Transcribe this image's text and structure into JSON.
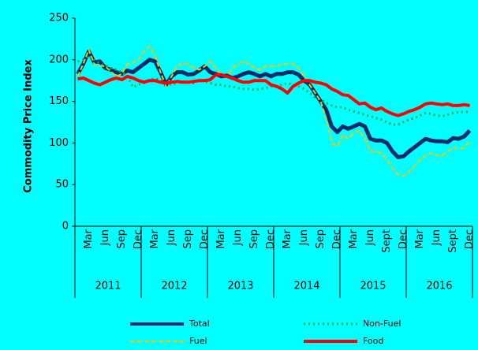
{
  "chart_data": {
    "type": "line",
    "y_label": "Commodity Price Index",
    "categories": [
      null,
      null,
      "Mar",
      null,
      null,
      "Jun",
      null,
      null,
      "Sep",
      null,
      null,
      "Dec",
      null,
      null,
      "Mar",
      null,
      null,
      "Jun",
      null,
      null,
      "Sep",
      null,
      null,
      "Dec",
      null,
      null,
      "Mar",
      null,
      null,
      "Jun",
      null,
      null,
      "Sep",
      null,
      null,
      "Dec",
      null,
      null,
      "Mar",
      null,
      null,
      "Jun",
      null,
      null,
      "Sep",
      null,
      null,
      "Dec",
      null,
      null,
      "Mar",
      null,
      null,
      "Jun",
      null,
      null,
      "Sept",
      null,
      null,
      "Dec",
      null,
      null,
      "Mar",
      null,
      null,
      "Jun",
      null,
      null,
      "Sept",
      null,
      null,
      "Dec"
    ],
    "groups": [
      "2011",
      "2012",
      "2013",
      "2014",
      "2015",
      "2016"
    ],
    "ylim": [
      0,
      250
    ],
    "yticks": [
      0,
      50,
      100,
      150,
      200,
      250
    ],
    "series": [
      {
        "name": "Total",
        "color": "#002b6b",
        "dash": "solid",
        "values": [
          183,
          195,
          210,
          197,
          198,
          190,
          188,
          185,
          183,
          187,
          185,
          190,
          195,
          200,
          198,
          185,
          170,
          180,
          185,
          185,
          182,
          183,
          187,
          192,
          185,
          183,
          180,
          181,
          178,
          180,
          183,
          185,
          183,
          180,
          183,
          180,
          183,
          183,
          185,
          185,
          182,
          175,
          170,
          160,
          150,
          140,
          120,
          113,
          120,
          117,
          120,
          123,
          120,
          105,
          103,
          103,
          100,
          90,
          83,
          84,
          90,
          95,
          100,
          105,
          103,
          102,
          102,
          101,
          106,
          105,
          108,
          115
        ]
      },
      {
        "name": "Non-Fuel",
        "color": "#00b050",
        "dash": "dotted",
        "values": [
          198,
          200,
          205,
          200,
          195,
          193,
          190,
          188,
          185,
          180,
          167,
          170,
          172,
          175,
          178,
          175,
          172,
          170,
          172,
          174,
          173,
          172,
          175,
          174,
          172,
          170,
          170,
          168,
          168,
          166,
          165,
          165,
          164,
          165,
          166,
          168,
          168,
          170,
          172,
          170,
          168,
          165,
          160,
          155,
          152,
          148,
          145,
          143,
          143,
          140,
          138,
          136,
          134,
          132,
          130,
          128,
          125,
          122,
          122,
          125,
          128,
          130,
          133,
          136,
          135,
          133,
          132,
          134,
          136,
          137,
          137,
          138
        ]
      },
      {
        "name": "Fuel",
        "color": "#ffc000",
        "dash": "dashed",
        "values": [
          180,
          195,
          212,
          195,
          193,
          192,
          186,
          180,
          183,
          195,
          196,
          200,
          210,
          216,
          205,
          185,
          168,
          180,
          192,
          196,
          195,
          190,
          188,
          192,
          198,
          190,
          182,
          180,
          190,
          195,
          198,
          195,
          190,
          188,
          192,
          193,
          192,
          195,
          195,
          195,
          190,
          180,
          170,
          160,
          150,
          130,
          100,
          96,
          110,
          105,
          112,
          115,
          105,
          90,
          90,
          88,
          80,
          70,
          62,
          60,
          65,
          72,
          80,
          85,
          88,
          85,
          85,
          90,
          95,
          92,
          95,
          102
        ]
      },
      {
        "name": "Food",
        "color": "#ff0000",
        "dash": "solid",
        "values": [
          177,
          178,
          175,
          172,
          170,
          173,
          176,
          178,
          176,
          180,
          178,
          175,
          173,
          175,
          175,
          173,
          172,
          173,
          174,
          173,
          173,
          174,
          175,
          175,
          176,
          182,
          182,
          180,
          178,
          175,
          173,
          173,
          175,
          175,
          175,
          170,
          168,
          165,
          160,
          168,
          172,
          175,
          175,
          173,
          172,
          170,
          165,
          162,
          158,
          157,
          152,
          147,
          148,
          143,
          140,
          142,
          138,
          135,
          133,
          135,
          138,
          140,
          143,
          147,
          148,
          147,
          146,
          147,
          145,
          145,
          146,
          145
        ]
      }
    ]
  }
}
